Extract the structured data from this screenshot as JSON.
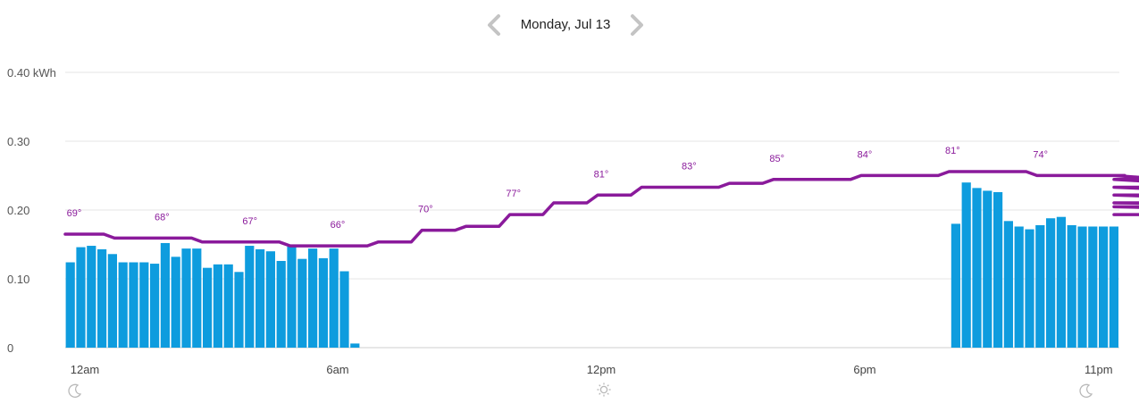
{
  "header": {
    "date_label": "Monday, Jul 13",
    "prev_icon": "chevron-left-icon",
    "next_icon": "chevron-right-icon"
  },
  "chart_data": {
    "type": "bar",
    "title": "",
    "ylabel": "",
    "ylim": [
      0,
      0.4
    ],
    "y_ticks": [
      {
        "value": 0,
        "label": "0"
      },
      {
        "value": 0.1,
        "label": "0.10"
      },
      {
        "value": 0.2,
        "label": "0.20"
      },
      {
        "value": 0.3,
        "label": "0.30"
      },
      {
        "value": 0.4,
        "label": "0.40 kWh"
      }
    ],
    "x_ticks": [
      "12am",
      "6am",
      "12pm",
      "6pm",
      "11pm"
    ],
    "grid": true,
    "bar_color": "#0e9cde",
    "temp_color": "#8a1a9b",
    "energy_kwh": [
      0.124,
      0.146,
      0.148,
      0.143,
      0.136,
      0.124,
      0.124,
      0.124,
      0.122,
      0.152,
      0.132,
      0.144,
      0.144,
      0.116,
      0.121,
      0.121,
      0.11,
      0.148,
      0.143,
      0.14,
      0.126,
      0.147,
      0.129,
      0.144,
      0.13,
      0.144,
      0.111,
      0.006,
      0,
      0,
      0,
      0,
      0,
      0,
      0,
      0,
      0,
      0,
      0,
      0,
      0,
      0,
      0,
      0,
      0,
      0,
      0,
      0,
      0,
      0,
      0,
      0,
      0,
      0,
      0,
      0,
      0,
      0,
      0,
      0,
      0,
      0,
      0,
      0,
      0,
      0,
      0,
      0,
      0,
      0,
      0,
      0,
      0,
      0,
      0,
      0,
      0,
      0,
      0,
      0,
      0,
      0,
      0,
      0,
      0.18,
      0.24,
      0.232,
      0.228,
      0.226,
      0.184,
      0.176,
      0.172,
      0.178,
      0.188,
      0.19,
      0.178,
      0.176,
      0.176,
      0.176,
      0.176
    ],
    "temperature_f": [
      69,
      68,
      68,
      67,
      67,
      66,
      66,
      67,
      70,
      71,
      74,
      77,
      79,
      81,
      81,
      82,
      83,
      83,
      84,
      84,
      85,
      85,
      84,
      84,
      84,
      83,
      83,
      81,
      79,
      79,
      77,
      76,
      74,
      74,
      74
    ],
    "temperature_labels": [
      {
        "hour": 0,
        "label": "69°"
      },
      {
        "hour": 2,
        "label": "68°"
      },
      {
        "hour": 4,
        "label": "67°"
      },
      {
        "hour": 6,
        "label": "66°"
      },
      {
        "hour": 8,
        "label": "70°"
      },
      {
        "hour": 10,
        "label": "77°"
      },
      {
        "hour": 12,
        "label": "81°"
      },
      {
        "hour": 14,
        "label": "83°"
      },
      {
        "hour": 16,
        "label": "85°"
      },
      {
        "hour": 18,
        "label": "84°"
      },
      {
        "hour": 20,
        "label": "81°"
      },
      {
        "hour": 22,
        "label": "74°"
      }
    ],
    "time_icons": [
      {
        "position": "12am",
        "icon": "moon-icon"
      },
      {
        "position": "12pm",
        "icon": "sun-icon"
      },
      {
        "position": "11pm",
        "icon": "moon-icon"
      }
    ]
  }
}
